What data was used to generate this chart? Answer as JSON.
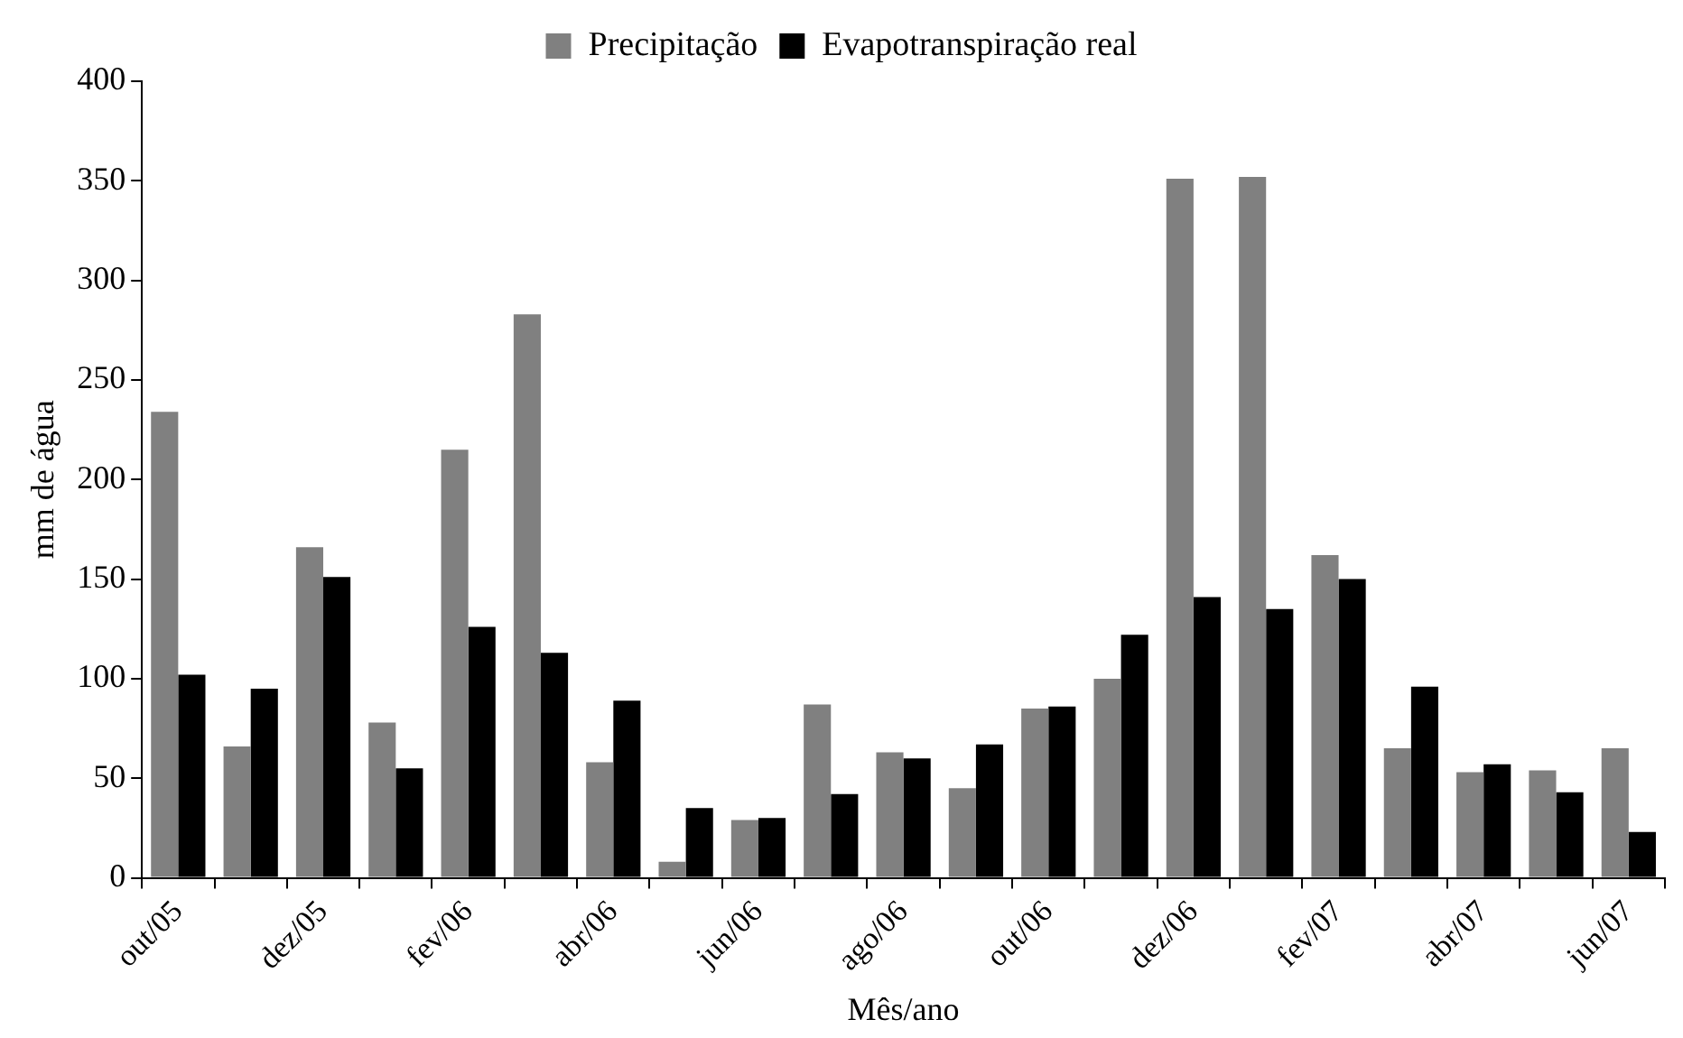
{
  "chart_data": {
    "type": "bar",
    "xlabel": "Mês/ano",
    "ylabel": "mm de água",
    "categories": [
      "out/05",
      null,
      "dez/05",
      null,
      "fev/06",
      null,
      "abr/06",
      null,
      "jun/06",
      null,
      "ago/06",
      null,
      "out/06",
      null,
      "dez/06",
      null,
      "fev/07",
      null,
      "abr/07",
      null,
      "jun/07"
    ],
    "series": [
      {
        "name": "Precipitação",
        "color": "#808080",
        "values": [
          234,
          66,
          166,
          78,
          215,
          283,
          58,
          8,
          29,
          87,
          63,
          45,
          85,
          100,
          351,
          352,
          162,
          65,
          53,
          54,
          65
        ]
      },
      {
        "name": "Evapotranspiração real",
        "color": "#000000",
        "values": [
          102,
          95,
          151,
          55,
          126,
          113,
          89,
          35,
          30,
          42,
          60,
          67,
          86,
          122,
          141,
          135,
          150,
          96,
          57,
          43,
          23
        ]
      }
    ],
    "ylim": [
      0,
      400
    ],
    "yticks": [
      0,
      50,
      100,
      150,
      200,
      250,
      300,
      350,
      400
    ],
    "grid": false,
    "legend": "top"
  }
}
